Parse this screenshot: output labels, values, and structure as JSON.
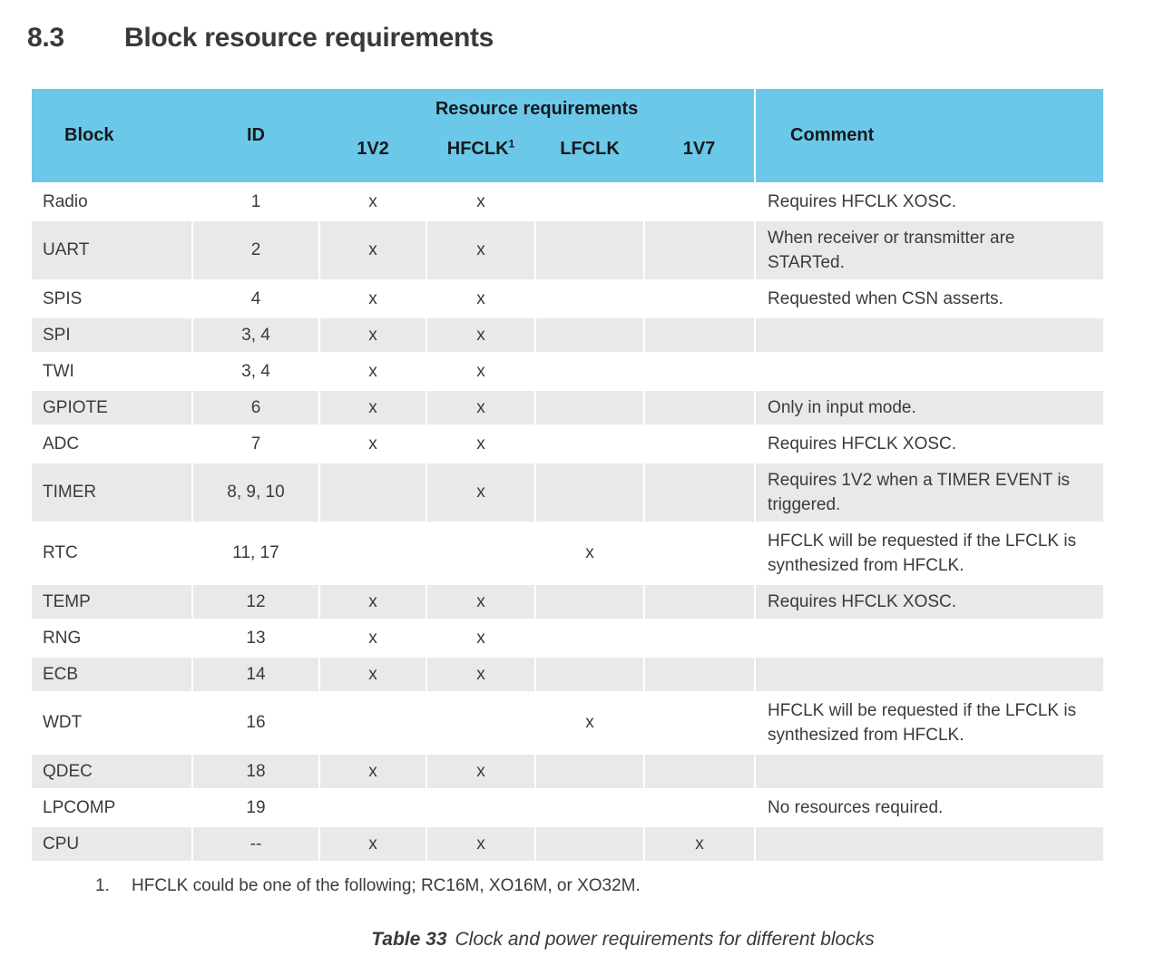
{
  "section": {
    "number": "8.3",
    "title": "Block resource requirements"
  },
  "table": {
    "headers": {
      "block": "Block",
      "id": "ID",
      "resource_group": "Resource requirements",
      "sub_1v2": "1V2",
      "sub_hfclk": "HFCLK",
      "hfclk_footnote_ref": "1",
      "sub_lfclk": "LFCLK",
      "sub_1v7": "1V7",
      "comment": "Comment"
    },
    "rows": [
      {
        "block": "Radio",
        "id": "1",
        "v1v2": "x",
        "hfclk": "x",
        "lfclk": "",
        "v1v7": "",
        "comment": "Requires HFCLK XOSC."
      },
      {
        "block": "UART",
        "id": "2",
        "v1v2": "x",
        "hfclk": "x",
        "lfclk": "",
        "v1v7": "",
        "comment": "When receiver or transmitter are STARTed."
      },
      {
        "block": "SPIS",
        "id": "4",
        "v1v2": "x",
        "hfclk": "x",
        "lfclk": "",
        "v1v7": "",
        "comment": "Requested when CSN asserts."
      },
      {
        "block": "SPI",
        "id": "3, 4",
        "v1v2": "x",
        "hfclk": "x",
        "lfclk": "",
        "v1v7": "",
        "comment": ""
      },
      {
        "block": "TWI",
        "id": "3, 4",
        "v1v2": "x",
        "hfclk": "x",
        "lfclk": "",
        "v1v7": "",
        "comment": ""
      },
      {
        "block": "GPIOTE",
        "id": "6",
        "v1v2": "x",
        "hfclk": "x",
        "lfclk": "",
        "v1v7": "",
        "comment": "Only in input mode."
      },
      {
        "block": "ADC",
        "id": "7",
        "v1v2": "x",
        "hfclk": "x",
        "lfclk": "",
        "v1v7": "",
        "comment": "Requires HFCLK XOSC."
      },
      {
        "block": "TIMER",
        "id": "8, 9, 10",
        "v1v2": "",
        "hfclk": "x",
        "lfclk": "",
        "v1v7": "",
        "comment": "Requires 1V2 when a TIMER EVENT is triggered."
      },
      {
        "block": "RTC",
        "id": "11, 17",
        "v1v2": "",
        "hfclk": "",
        "lfclk": "x",
        "v1v7": "",
        "comment": "HFCLK will be requested if the LFCLK is synthesized from HFCLK."
      },
      {
        "block": "TEMP",
        "id": "12",
        "v1v2": "x",
        "hfclk": "x",
        "lfclk": "",
        "v1v7": "",
        "comment": "Requires HFCLK XOSC."
      },
      {
        "block": "RNG",
        "id": "13",
        "v1v2": "x",
        "hfclk": "x",
        "lfclk": "",
        "v1v7": "",
        "comment": ""
      },
      {
        "block": "ECB",
        "id": "14",
        "v1v2": "x",
        "hfclk": "x",
        "lfclk": "",
        "v1v7": "",
        "comment": ""
      },
      {
        "block": "WDT",
        "id": "16",
        "v1v2": "",
        "hfclk": "",
        "lfclk": "x",
        "v1v7": "",
        "comment": "HFCLK will be requested if the LFCLK is synthesized from HFCLK."
      },
      {
        "block": "QDEC",
        "id": "18",
        "v1v2": "x",
        "hfclk": "x",
        "lfclk": "",
        "v1v7": "",
        "comment": ""
      },
      {
        "block": "LPCOMP",
        "id": "19",
        "v1v2": "",
        "hfclk": "",
        "lfclk": "",
        "v1v7": "",
        "comment": "No resources required."
      },
      {
        "block": "CPU",
        "id": "--",
        "v1v2": "x",
        "hfclk": "x",
        "lfclk": "",
        "v1v7": "x",
        "comment": ""
      }
    ]
  },
  "footnote": {
    "number": "1.",
    "text": "HFCLK could be one of the following; RC16M, XO16M, or XO32M."
  },
  "caption": {
    "label": "Table 33",
    "text": "Clock and power requirements for different blocks"
  },
  "colors": {
    "header_bg": "#6cc8e8",
    "row_stripe": "#e9e9e9",
    "body_text": "#3b3b3b",
    "header_text": "#16191d"
  }
}
